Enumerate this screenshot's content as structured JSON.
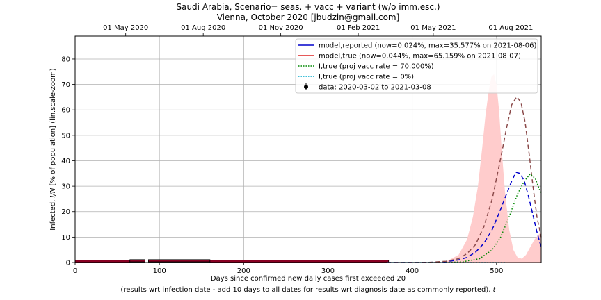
{
  "chart_data": {
    "type": "line",
    "title_line1": "Saudi Arabia, Scenario= seas. + vacc + variant (w/o imm.esc.)",
    "title_line2": "Vienna, October 2020 [jbudzin@gmail.com]",
    "ylabel_prefix": "Infected, ",
    "ylabel_var": "I/N",
    "ylabel_suffix": " [% of population] (lin.scale-zoom)",
    "xlabel": "Days since confirmed new daily cases first exceeded 20",
    "xlabel2_prefix": "(results wrt infection date - add 10 days to all dates for results wrt diagnosis date as commonly reported), ",
    "xlabel2_var": "t",
    "xlim": [
      0,
      553
    ],
    "ylim": [
      0,
      89
    ],
    "grid": true,
    "legend_placement": "top-right",
    "x_ticks": [
      0,
      100,
      200,
      300,
      400,
      500
    ],
    "x_tick_labels": [
      "0",
      "100",
      "200",
      "300",
      "400",
      "500"
    ],
    "y_ticks": [
      0,
      10,
      20,
      30,
      40,
      50,
      60,
      70,
      80
    ],
    "y_tick_labels": [
      "0",
      "10",
      "20",
      "30",
      "40",
      "50",
      "60",
      "70",
      "80"
    ],
    "date_ticks": [
      {
        "day": 60,
        "label": "01 May 2020"
      },
      {
        "day": 152,
        "label": "01 Aug 2020"
      },
      {
        "day": 244,
        "label": "01 Nov 2020"
      },
      {
        "day": 336,
        "label": "01 Feb 2021"
      },
      {
        "day": 425,
        "label": "01 May 2021"
      },
      {
        "day": 517,
        "label": "01 Aug 2021"
      }
    ],
    "legend": [
      {
        "label": "model,reported (now=0.024%, max=35.577% on 2021-08-06)",
        "color": "#0000cc",
        "style": "solid"
      },
      {
        "label": "model,true (now=0.044%, max=65.159% on 2021-08-07)",
        "color": "#dd2222",
        "style": "solid"
      },
      {
        "label": "I,true (proj vacc rate = 70.000%)",
        "color": "#008800",
        "style": "dotted"
      },
      {
        "label": "I,true (proj vacc rate = 0%)",
        "color": "#00aacc",
        "style": "dotted"
      },
      {
        "label": "data: 2020-03-02 to 2021-03-08",
        "color": "#000000",
        "style": "errorbar"
      }
    ],
    "series": [
      {
        "name": "model,reported (now=0.024%, max=35.577% on 2021-08-06)",
        "color": "#0000cc",
        "dash": "6,4",
        "x": [
          370,
          400,
          420,
          440,
          455,
          465,
          475,
          485,
          495,
          505,
          512,
          518,
          523,
          528,
          533,
          538,
          543,
          548,
          553
        ],
        "values": [
          0,
          0,
          0.05,
          0.3,
          1,
          2,
          4,
          7.5,
          13,
          21,
          27,
          32,
          35.5,
          35,
          32,
          26,
          19,
          12,
          6
        ]
      },
      {
        "name": "model,true (now=0.044%, max=65.159% on 2021-08-07)",
        "color": "#8b4a4a",
        "dash": "6,4",
        "x": [
          370,
          400,
          420,
          440,
          455,
          465,
          475,
          485,
          495,
          505,
          512,
          518,
          524,
          529,
          534,
          539,
          544,
          548,
          553
        ],
        "values": [
          0,
          0,
          0.05,
          0.5,
          1.5,
          3.5,
          7,
          14,
          25,
          41,
          53,
          62,
          65.2,
          63,
          55,
          42,
          28,
          18,
          10
        ]
      },
      {
        "name": "I,true (proj vacc rate = 70.000%)",
        "color": "#008800",
        "dash": "1.5,2.5",
        "x": [
          440,
          460,
          480,
          495,
          505,
          515,
          525,
          533,
          540,
          546,
          553
        ],
        "values": [
          0,
          0.3,
          1.5,
          5,
          10,
          18,
          27,
          32,
          34.8,
          33,
          27
        ]
      },
      {
        "name": "I,true (proj vacc rate = 0%)",
        "color": "#00aacc",
        "dash": "1.5,2.5",
        "x": [
          370,
          400,
          420,
          440,
          460,
          470,
          480,
          490,
          496,
          502,
          510
        ],
        "values": [
          0,
          0,
          0,
          0,
          0,
          0,
          0,
          0,
          0,
          0,
          0
        ]
      }
    ],
    "band": {
      "color": "#ffcccc",
      "x": [
        440,
        455,
        465,
        472,
        478,
        483,
        487,
        491,
        494,
        497,
        500,
        503,
        506,
        510,
        515,
        520,
        525,
        530,
        535,
        540,
        545,
        550,
        553
      ],
      "upper": [
        0.3,
        3,
        9,
        18,
        30,
        45,
        58,
        68,
        73,
        74,
        70,
        60,
        45,
        28,
        13,
        5,
        2,
        1.5,
        3,
        6,
        9,
        11,
        12
      ],
      "lower": [
        0,
        0,
        0,
        0,
        0,
        0,
        0,
        0,
        0,
        0,
        0,
        0,
        0,
        0,
        0,
        0,
        0,
        0,
        0,
        0,
        0,
        0,
        0
      ]
    },
    "data_points": {
      "x_start": 0,
      "x_end": 372,
      "segments": [
        {
          "x0": 0,
          "x1": 65,
          "y": 0.5
        },
        {
          "x0": 65,
          "x1": 83,
          "y": 0.7
        },
        {
          "x0": 87,
          "x1": 160,
          "y": 0.7
        },
        {
          "x0": 160,
          "x1": 372,
          "y": 0.5
        }
      ],
      "color": "#000000",
      "fill_color": "#880022"
    },
    "projection_line": {
      "x": [
        372,
        440
      ],
      "y": 0,
      "color": "#444444"
    }
  }
}
